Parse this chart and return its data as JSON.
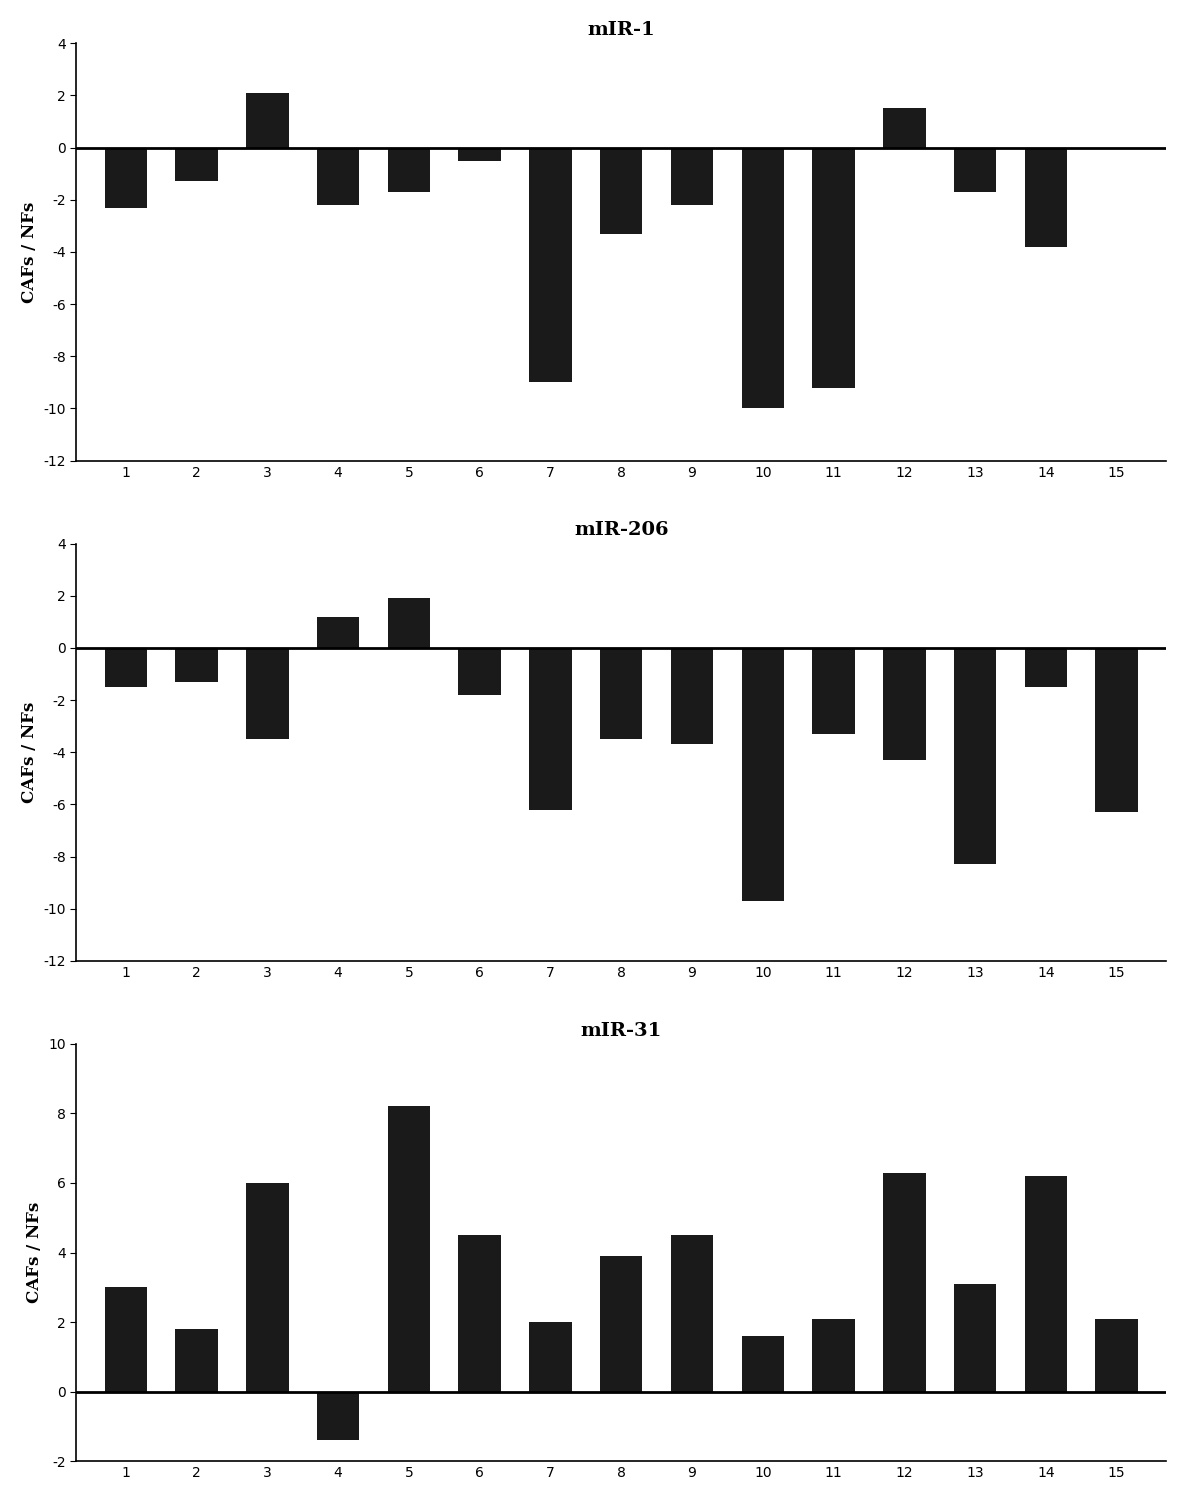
{
  "charts": [
    {
      "title": "mIR-1",
      "values": [
        -2.3,
        -1.3,
        2.1,
        -2.2,
        -1.7,
        -0.5,
        -9.0,
        -3.3,
        -2.2,
        -10.0,
        -9.2,
        1.5,
        -1.7,
        -3.8
      ],
      "n_bars": 14,
      "ylim": [
        -12,
        4
      ],
      "yticks": [
        -12,
        -10,
        -8,
        -6,
        -4,
        -2,
        0,
        2,
        4
      ]
    },
    {
      "title": "mIR-206",
      "values": [
        -1.5,
        -1.3,
        -3.5,
        1.2,
        1.9,
        -1.8,
        -6.2,
        -3.5,
        -3.7,
        -9.7,
        -3.3,
        -4.3,
        -8.3,
        -1.5,
        -6.3
      ],
      "n_bars": 15,
      "ylim": [
        -12,
        4
      ],
      "yticks": [
        -12,
        -10,
        -8,
        -6,
        -4,
        -2,
        0,
        2,
        4
      ]
    },
    {
      "title": "mIR-31",
      "values": [
        3.0,
        1.8,
        6.0,
        -1.4,
        8.2,
        4.5,
        2.0,
        3.9,
        4.5,
        1.6,
        2.1,
        6.3,
        3.1,
        6.2,
        2.1
      ],
      "n_bars": 15,
      "ylim": [
        -2,
        10
      ],
      "yticks": [
        -2,
        0,
        2,
        4,
        6,
        8,
        10
      ]
    }
  ],
  "ylabel": "CAFs / NFs",
  "bar_color": "#1a1a1a",
  "background_color": "#ffffff",
  "title_fontsize": 14,
  "label_fontsize": 12,
  "tick_fontsize": 12
}
